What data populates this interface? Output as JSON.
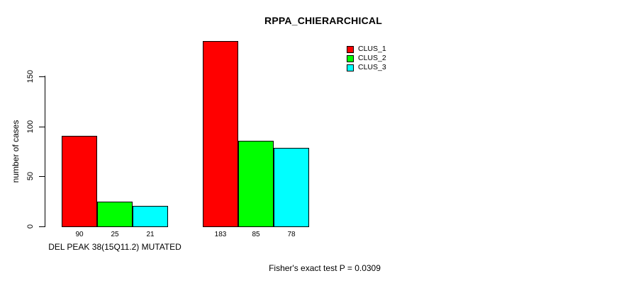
{
  "chart_data": {
    "type": "bar",
    "title": "RPPA_CHIERARCHICAL",
    "ylabel": "number of cases",
    "xlabel": "",
    "yticks": [
      0,
      50,
      100,
      150
    ],
    "ylim": [
      0,
      183
    ],
    "grid": false,
    "legend_position": "top-right",
    "categories": [
      "DEL PEAK 38(15Q11.2) MUTATED",
      ""
    ],
    "series": [
      {
        "name": "CLUS_1",
        "color": "#FF0000",
        "values": [
          90,
          183
        ]
      },
      {
        "name": "CLUS_2",
        "color": "#00FF00",
        "values": [
          25,
          85
        ]
      },
      {
        "name": "CLUS_3",
        "color": "#00FFFF",
        "values": [
          21,
          78
        ]
      }
    ],
    "bar_value_labels": [
      [
        90,
        25,
        21
      ],
      [
        183,
        85,
        78
      ]
    ],
    "annotation": "Fisher's exact test P = 0.0309"
  }
}
